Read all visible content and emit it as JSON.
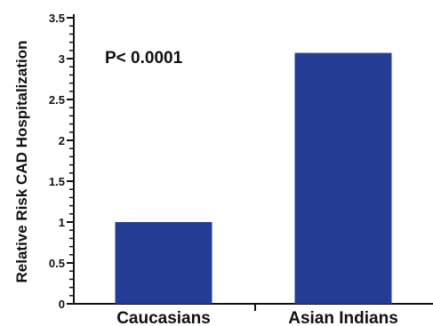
{
  "chart_data": {
    "type": "bar",
    "categories": [
      "Caucasians",
      "Asian Indians"
    ],
    "values": [
      1.0,
      3.07
    ],
    "ylabel": "Relative Risk CAD Hospitalization",
    "xlabel": "",
    "ylim": [
      0,
      3.5
    ],
    "yticks": [
      "0",
      "0.5",
      "1",
      "1.5",
      "2",
      "2.5",
      "3",
      "3.5"
    ],
    "annotation": "P< 0.0001",
    "grid": false,
    "bar_color": "#233d95"
  }
}
